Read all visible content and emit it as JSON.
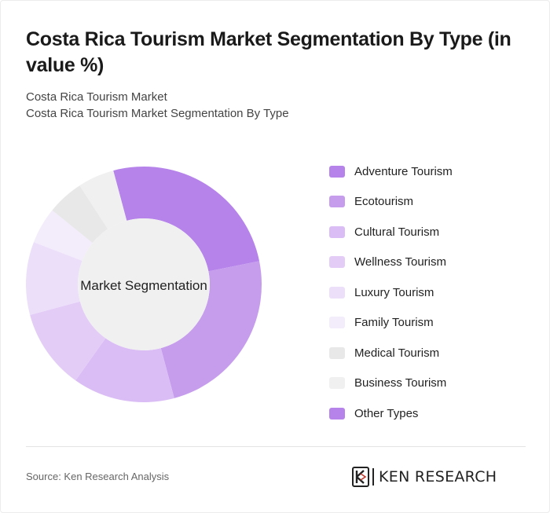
{
  "title": "Costa Rica Tourism Market Segmentation By Type (in value %)",
  "subtitle_line1": "Costa Rica Tourism Market",
  "subtitle_line2": "Costa Rica Tourism Market Segmentation By Type",
  "source": "Source: Ken Research Analysis",
  "logo_text": "KEN RESEARCH",
  "chart_data": {
    "type": "pie",
    "center_label": "Market Segmentation",
    "categories": [
      "Adventure Tourism",
      "Ecotourism",
      "Cultural Tourism",
      "Wellness Tourism",
      "Luxury Tourism",
      "Family Tourism",
      "Medical Tourism",
      "Business Tourism",
      "Other Types"
    ],
    "values": [
      26,
      24,
      14,
      11,
      10,
      5,
      5,
      5,
      0
    ],
    "colors": [
      "#b583ea",
      "#c69ded",
      "#dbbdf5",
      "#e3cdf7",
      "#ecdffa",
      "#f3ecfb",
      "#e8e8e8",
      "#f0f0f0",
      "#b583ea"
    ],
    "legend_position": "right"
  }
}
